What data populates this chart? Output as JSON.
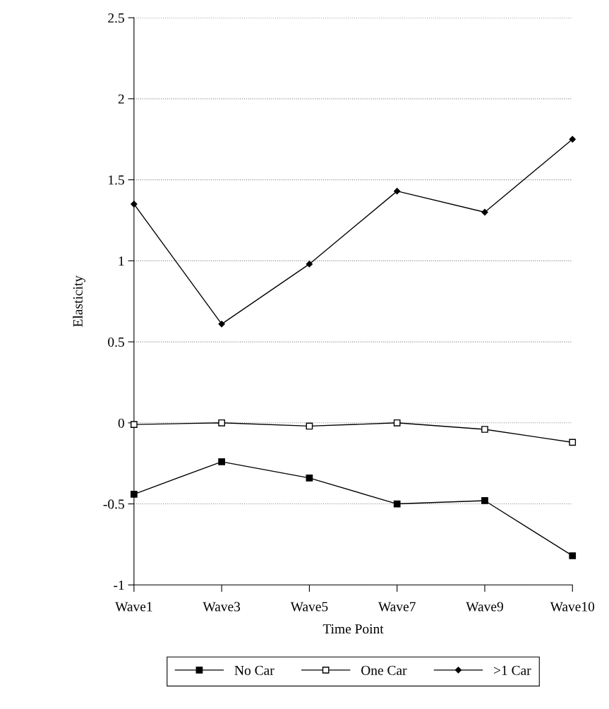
{
  "chart_data": {
    "type": "line",
    "xlabel": "Time Point",
    "ylabel": "Elasticity",
    "categories": [
      "Wave1",
      "Wave3",
      "Wave5",
      "Wave7",
      "Wave9",
      "Wave10"
    ],
    "series": [
      {
        "name": "No Car",
        "color": "#000000",
        "marker": "square",
        "values": [
          -0.44,
          -0.24,
          -0.34,
          -0.5,
          -0.48,
          -0.82
        ]
      },
      {
        "name": "One Car",
        "color": "#000000",
        "marker": "square_open",
        "values": [
          -0.01,
          0.0,
          -0.02,
          0.0,
          -0.04,
          -0.12
        ]
      },
      {
        "name": ">1 Car",
        "color": "#000000",
        "marker": "diamond",
        "values": [
          1.35,
          0.61,
          0.98,
          1.43,
          1.3,
          1.75
        ]
      }
    ],
    "ylim": [
      -1,
      2.5
    ],
    "yticks": [
      -1,
      -0.5,
      0,
      0.5,
      1,
      1.5,
      2,
      2.5
    ],
    "grid": "y",
    "legend": "bottom",
    "line_style": "solid"
  }
}
